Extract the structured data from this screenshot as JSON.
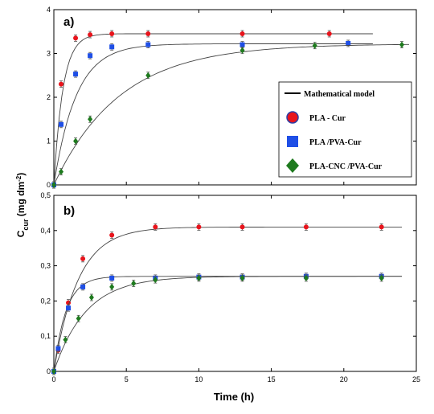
{
  "figure": {
    "xlabel": "Time (h)",
    "ylabel_main": "C",
    "ylabel_sub": "cur",
    "ylabel_units": " (mg dm",
    "ylabel_exp": "-2",
    "ylabel_close": ")"
  },
  "legend": {
    "title": "Mathematical model",
    "entries": [
      "PLA - Cur",
      "PLA /PVA-Cur",
      "PLA-CNC /PVA-Cur"
    ]
  },
  "colors": {
    "PLA - Cur": "#e8141c",
    "PLA /PVA-Cur": "#1f4fe6",
    "PLA-CNC /PVA-Cur": "#1e7a1e",
    "model": "#444444"
  },
  "chart_data": [
    {
      "type": "scatter",
      "panel": "a)",
      "xlim": [
        0,
        25
      ],
      "ylim": [
        0,
        4
      ],
      "yticks": [
        "0",
        "1",
        "2",
        "3",
        "4"
      ],
      "grid": false,
      "legend_position": "right",
      "series": [
        {
          "name": "PLA - Cur",
          "marker": "circle",
          "x": [
            0,
            0.5,
            1.5,
            2.5,
            4,
            6.5,
            13,
            19
          ],
          "y": [
            0.0,
            2.3,
            3.35,
            3.43,
            3.45,
            3.45,
            3.45,
            3.45
          ],
          "model": {
            "plateau": 3.45,
            "k": 1.6,
            "xmax": 22
          }
        },
        {
          "name": "PLA /PVA-Cur",
          "marker": "square",
          "x": [
            0,
            0.5,
            1.5,
            2.5,
            4,
            6.5,
            13,
            20.3
          ],
          "y": [
            0.0,
            1.38,
            2.53,
            2.95,
            3.15,
            3.2,
            3.2,
            3.23
          ],
          "model": {
            "plateau": 3.22,
            "k": 0.65,
            "xmax": 22
          }
        },
        {
          "name": "PLA-CNC /PVA-Cur",
          "marker": "diamond",
          "x": [
            0,
            0.5,
            1.5,
            2.5,
            6.5,
            13,
            18,
            24
          ],
          "y": [
            0.0,
            0.3,
            1.0,
            1.5,
            2.5,
            3.07,
            3.18,
            3.2
          ],
          "model": {
            "plateau": 3.22,
            "k": 0.22,
            "xmax": 24.5
          }
        }
      ]
    },
    {
      "type": "scatter",
      "panel": "b)",
      "xlim": [
        0,
        25
      ],
      "ylim": [
        0,
        0.5
      ],
      "xticks": [
        "0",
        "5",
        "10",
        "15",
        "20",
        "25"
      ],
      "yticks": [
        "0",
        "0,1",
        "0,2",
        "0,3",
        "0,4",
        "0,5"
      ],
      "grid": false,
      "series": [
        {
          "name": "PLA - Cur",
          "marker": "circle",
          "x": [
            0,
            0.3,
            1,
            2,
            4,
            7,
            10,
            13,
            17.4,
            22.6
          ],
          "y": [
            0.0,
            0.06,
            0.195,
            0.32,
            0.387,
            0.41,
            0.41,
            0.41,
            0.41,
            0.41
          ],
          "model": {
            "plateau": 0.41,
            "k": 0.6,
            "xmax": 24
          }
        },
        {
          "name": "PLA /PVA-Cur",
          "marker": "square",
          "x": [
            0,
            0.3,
            1,
            2,
            4,
            7,
            10,
            13,
            17.4,
            22.6
          ],
          "y": [
            0.0,
            0.065,
            0.18,
            0.24,
            0.265,
            0.265,
            0.268,
            0.268,
            0.27,
            0.27
          ],
          "model": {
            "plateau": 0.27,
            "k": 1.2,
            "xmax": 24
          }
        },
        {
          "name": "PLA-CNC /PVA-Cur",
          "marker": "diamond",
          "x": [
            0,
            0.8,
            1.7,
            2.6,
            4,
            5.5,
            7,
            10,
            13,
            17.4,
            22.6
          ],
          "y": [
            0.0,
            0.09,
            0.15,
            0.21,
            0.24,
            0.25,
            0.26,
            0.265,
            0.265,
            0.265,
            0.265
          ],
          "model": {
            "plateau": 0.27,
            "k": 0.45,
            "xmax": 24
          }
        }
      ]
    }
  ]
}
